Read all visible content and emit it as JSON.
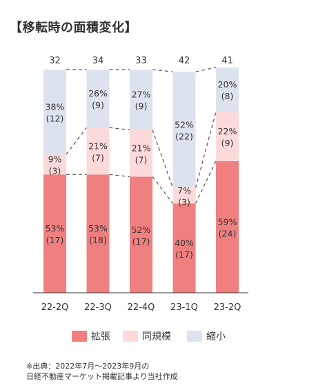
{
  "title": "【移転時の面積変化】",
  "colors": {
    "expand": "#f08080",
    "same": "#fddada",
    "shrink": "#dde3ee",
    "axis": "#333333",
    "connector": "#555555",
    "text": "#333333"
  },
  "legend": [
    {
      "key": "expand",
      "label": "拡張"
    },
    {
      "key": "same",
      "label": "同規模"
    },
    {
      "key": "shrink",
      "label": "縮小"
    }
  ],
  "source": {
    "line1": "※出典：2022年7月～2023年9月の",
    "line2": "日経不動産マーケット掲載記事より当社作成"
  },
  "chart_data": {
    "type": "bar",
    "stacked": true,
    "percent_stacked": true,
    "categories": [
      "22-2Q",
      "22-3Q",
      "22-4Q",
      "23-1Q",
      "23-2Q"
    ],
    "totals": [
      "32",
      "34",
      "33",
      "42",
      "41"
    ],
    "series": [
      {
        "name": "拡張",
        "key": "expand",
        "percent": [
          53,
          53,
          52,
          40,
          59
        ],
        "counts": [
          17,
          18,
          17,
          17,
          24
        ],
        "pct_labels": [
          "53%",
          "53%",
          "52%",
          "40%",
          "59%"
        ],
        "count_labels": [
          "(17)",
          "(18)",
          "(17)",
          "(17)",
          "(24)"
        ]
      },
      {
        "name": "同規模",
        "key": "same",
        "percent": [
          9,
          21,
          21,
          7,
          22
        ],
        "counts": [
          3,
          7,
          7,
          3,
          9
        ],
        "pct_labels": [
          "9%",
          "21%",
          "21%",
          "7%",
          "22%"
        ],
        "count_labels": [
          "(3)",
          "(7)",
          "(7)",
          "(3)",
          "(9)"
        ]
      },
      {
        "name": "縮小",
        "key": "shrink",
        "percent": [
          38,
          26,
          27,
          52,
          20
        ],
        "counts": [
          12,
          9,
          9,
          22,
          8
        ],
        "pct_labels": [
          "38%",
          "26%",
          "27%",
          "52%",
          "20%"
        ],
        "count_labels": [
          "(12)",
          "(9)",
          "(9)",
          "(22)",
          "(8)"
        ]
      }
    ],
    "ylim": [
      0,
      100
    ],
    "grid": false,
    "legend_position": "bottom"
  }
}
